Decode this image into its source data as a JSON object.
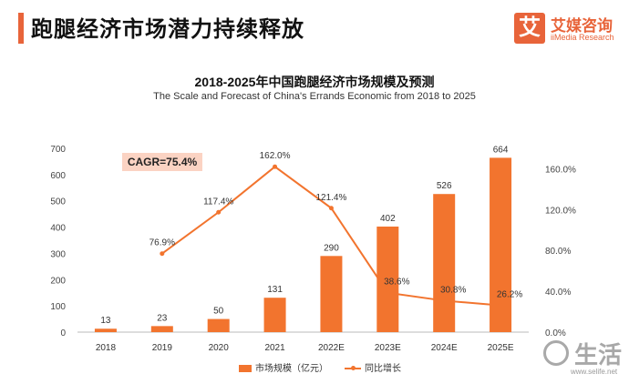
{
  "page": {
    "title": "跑腿经济市场潜力持续释放"
  },
  "logo": {
    "mark": "艾",
    "name_cn": "艾媒咨询",
    "name_en": "iiMedia Research"
  },
  "cagr_label": "CAGR=75.4%",
  "watermark": {
    "text": "生活",
    "url": "www.selife.net"
  },
  "colors": {
    "bar": "#f2742e",
    "line": "#f2742e",
    "accent": "#e8643a",
    "cagr_bg": "#fbd3c3"
  },
  "chart_data": {
    "type": "bar",
    "title": "2018-2025年中国跑腿经济市场规模及预测",
    "subtitle": "The Scale and Forecast of China's Errands Economic from 2018 to 2025",
    "categories": [
      "2018",
      "2019",
      "2020",
      "2021",
      "2022E",
      "2023E",
      "2024E",
      "2025E"
    ],
    "series": [
      {
        "name": "市场规模（亿元）",
        "type": "bar",
        "axis": "left",
        "values": [
          13,
          23,
          50,
          131,
          290,
          402,
          526,
          664
        ],
        "labels": [
          "13",
          "23",
          "50",
          "131",
          "290",
          "402",
          "526",
          "664"
        ]
      },
      {
        "name": "同比增长",
        "type": "line",
        "axis": "right",
        "values": [
          null,
          76.9,
          117.4,
          162.0,
          121.4,
          38.6,
          30.8,
          26.2
        ],
        "labels": [
          "",
          "76.9%",
          "117.4%",
          "162.0%",
          "121.4%",
          "38.6%",
          "30.8%",
          "26.2%"
        ]
      }
    ],
    "y_left": {
      "ylim": [
        0,
        700
      ],
      "ticks": [
        "0",
        "100",
        "200",
        "300",
        "400",
        "500",
        "600",
        "700"
      ]
    },
    "y_right": {
      "ylim": [
        0,
        180
      ],
      "ticks": [
        "0.0%",
        "40.0%",
        "80.0%",
        "120.0%",
        "160.0%"
      ],
      "tick_values": [
        0,
        40,
        80,
        120,
        160
      ]
    },
    "grid": false,
    "legend_position": "bottom"
  }
}
